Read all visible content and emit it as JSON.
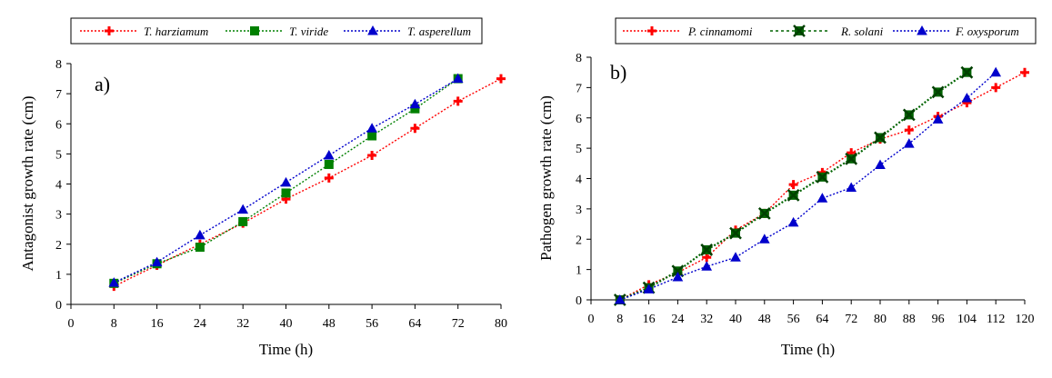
{
  "chart_data": [
    {
      "type": "line",
      "panel_label": "a)",
      "xlabel": "Time (h)",
      "ylabel": "Antagonist growth rate  (cm)",
      "xlim": [
        0,
        80
      ],
      "ylim": [
        0,
        8
      ],
      "xticks": [
        0,
        8,
        16,
        24,
        32,
        40,
        48,
        56,
        64,
        72,
        80
      ],
      "yticks": [
        0,
        1,
        2,
        3,
        4,
        5,
        6,
        7,
        8
      ],
      "grid": false,
      "legend_position": "top",
      "series": [
        {
          "name": "T. harziamum",
          "color": "#ff0000",
          "marker": "plus",
          "x": [
            8,
            16,
            24,
            32,
            40,
            48,
            56,
            64,
            72,
            80
          ],
          "y": [
            0.6,
            1.3,
            2.0,
            2.7,
            3.5,
            4.2,
            4.95,
            5.85,
            6.75,
            7.5
          ]
        },
        {
          "name": "T. viride",
          "color": "#008000",
          "marker": "square",
          "x": [
            8,
            16,
            24,
            32,
            40,
            48,
            56,
            64,
            72
          ],
          "y": [
            0.7,
            1.35,
            1.9,
            2.75,
            3.7,
            4.65,
            5.6,
            6.5,
            7.5
          ]
        },
        {
          "name": "T. asperellum",
          "color": "#0000cc",
          "marker": "triangle",
          "x": [
            8,
            16,
            24,
            32,
            40,
            48,
            56,
            64,
            72
          ],
          "y": [
            0.72,
            1.4,
            2.3,
            3.15,
            4.05,
            4.95,
            5.85,
            6.65,
            7.5
          ]
        }
      ]
    },
    {
      "type": "line",
      "panel_label": "b)",
      "xlabel": "Time (h)",
      "ylabel": "Pathogen growth rate (cm)",
      "xlim": [
        0,
        120
      ],
      "ylim": [
        0,
        8
      ],
      "xticks": [
        0,
        8,
        16,
        24,
        32,
        40,
        48,
        56,
        64,
        72,
        80,
        88,
        96,
        104,
        112,
        120
      ],
      "yticks": [
        0,
        1,
        2,
        3,
        4,
        5,
        6,
        7,
        8
      ],
      "grid": false,
      "legend_position": "top",
      "series": [
        {
          "name": "P. cinnamomi",
          "color": "#ff0000",
          "marker": "plus",
          "x": [
            8,
            16,
            24,
            32,
            40,
            48,
            56,
            64,
            72,
            80,
            88,
            96,
            104,
            112,
            120
          ],
          "y": [
            0.0,
            0.5,
            0.9,
            1.4,
            2.3,
            2.85,
            3.8,
            4.2,
            4.85,
            5.3,
            5.6,
            6.05,
            6.5,
            7.0,
            7.5
          ]
        },
        {
          "name": "R. solani",
          "color": "#006400",
          "marker": "star",
          "x": [
            8,
            16,
            24,
            32,
            40,
            48,
            56,
            64,
            72,
            80,
            88,
            96,
            104
          ],
          "y": [
            0.0,
            0.4,
            0.95,
            1.65,
            2.2,
            2.85,
            3.45,
            4.05,
            4.65,
            5.35,
            6.1,
            6.85,
            7.5
          ]
        },
        {
          "name": "F. oxysporum",
          "color": "#0000cc",
          "marker": "triangle",
          "x": [
            8,
            16,
            24,
            32,
            40,
            48,
            56,
            64,
            72,
            80,
            88,
            96,
            104,
            112
          ],
          "y": [
            0.0,
            0.35,
            0.75,
            1.1,
            1.4,
            2.0,
            2.55,
            3.35,
            3.7,
            4.45,
            5.15,
            5.95,
            6.65,
            7.5
          ]
        }
      ]
    }
  ]
}
